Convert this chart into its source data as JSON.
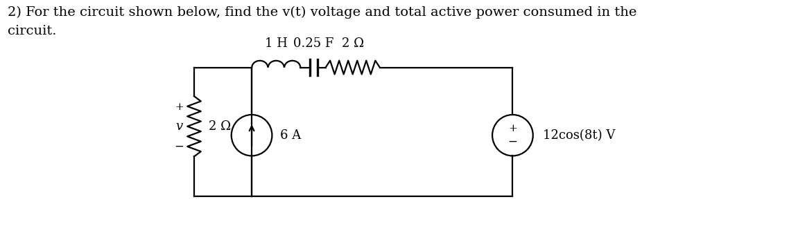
{
  "title_line1": "2) For the circuit shown below, find the v(t) voltage and total active power consumed in the",
  "title_line2": "circuit.",
  "label_1H": "1 H",
  "label_025F": "0.25 F",
  "label_2ohm_series": "2 Ω",
  "label_2ohm_parallel": "2 Ω",
  "label_6A": "6 A",
  "label_voltage": "12cos(8t) V",
  "label_v_plus": "+",
  "label_v_minus": "−",
  "label_v": "v",
  "label_vs_plus": "+",
  "label_vs_minus": "−",
  "fg_color": "#000000",
  "bg_color": "#ffffff",
  "font_size_title": 14,
  "font_size_labels": 13,
  "font_size_small": 11
}
